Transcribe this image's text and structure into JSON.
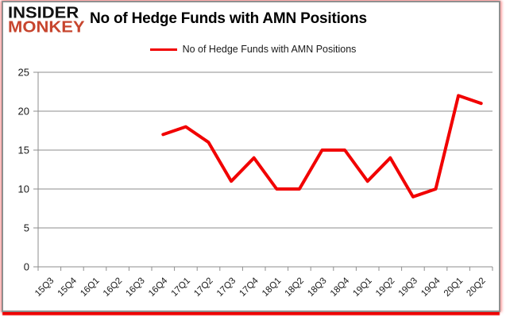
{
  "logo": {
    "line1": "INSIDER",
    "line2": "MONKEY",
    "red": "#c7452e"
  },
  "header": {
    "title": "No of Hedge Funds with AMN Positions"
  },
  "legend": {
    "label": "No of Hedge Funds with AMN Positions",
    "swatch_color": "#f10000"
  },
  "chart_data": {
    "type": "line",
    "title": "No of Hedge Funds with AMN Positions",
    "xlabel": "",
    "ylabel": "",
    "categories": [
      "15Q3",
      "15Q4",
      "16Q1",
      "16Q2",
      "16Q3",
      "16Q4",
      "17Q1",
      "17Q2",
      "17Q3",
      "17Q4",
      "18Q1",
      "18Q2",
      "18Q3",
      "18Q4",
      "19Q1",
      "19Q2",
      "19Q3",
      "19Q4",
      "20Q1",
      "20Q2"
    ],
    "values": [
      null,
      null,
      null,
      null,
      null,
      17,
      18,
      16,
      11,
      14,
      10,
      10,
      15,
      15,
      11,
      14,
      9,
      10,
      22,
      21
    ],
    "ylim": [
      0,
      25
    ],
    "ytick_step": 5,
    "grid": true,
    "legend_entries": [
      "No of Hedge Funds with AMN Positions"
    ],
    "legend_position": "top-center",
    "line_color": "#f10000",
    "axis_color": "#8e8e8e",
    "label_color": "#1a1a1a"
  }
}
